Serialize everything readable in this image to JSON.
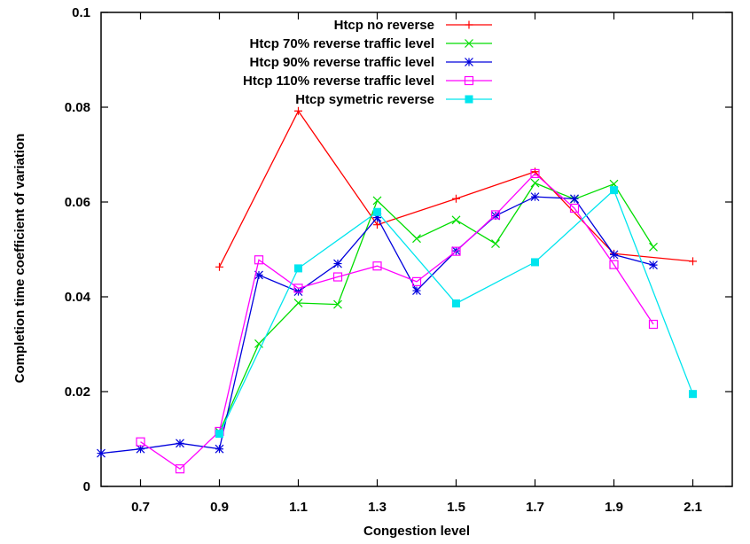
{
  "chart_data": {
    "type": "line",
    "title": "",
    "xlabel": "Congestion level",
    "ylabel": "Completion time coefficient of variation",
    "xlim": [
      0.6,
      2.2
    ],
    "ylim": [
      0,
      0.1
    ],
    "x_ticks": [
      0.7,
      0.9,
      1.1,
      1.3,
      1.5,
      1.7,
      1.9,
      2.1
    ],
    "x_tick_labels": [
      "0.7",
      "0.9",
      "1.1",
      "1.3",
      "1.5",
      "1.7",
      "1.9",
      "2.1"
    ],
    "y_ticks": [
      0,
      0.02,
      0.04,
      0.06,
      0.08,
      0.1
    ],
    "y_tick_labels": [
      "0",
      "0.02",
      "0.04",
      "0.06",
      "0.08",
      "0.1"
    ],
    "grid": false,
    "legend_position": "top-right",
    "series": [
      {
        "name": "Htcp no reverse",
        "color": "#ff0000",
        "marker": "plus",
        "x": [
          0.9,
          1.1,
          1.3,
          1.5,
          1.7,
          1.9,
          2.1
        ],
        "y": [
          0.0463,
          0.0792,
          0.0552,
          0.0607,
          0.0664,
          0.0491,
          0.0475
        ]
      },
      {
        "name": "Htcp 70% reverse traffic level",
        "color": "#00dd00",
        "marker": "cross",
        "x": [
          0.9,
          1.0,
          1.1,
          1.2,
          1.3,
          1.4,
          1.5,
          1.6,
          1.7,
          1.8,
          1.9,
          2.0
        ],
        "y": [
          0.0115,
          0.0301,
          0.0387,
          0.0384,
          0.0603,
          0.0523,
          0.0562,
          0.0512,
          0.064,
          0.0606,
          0.0638,
          0.0505
        ]
      },
      {
        "name": "Htcp 90% reverse traffic level",
        "color": "#0000dd",
        "marker": "star",
        "x": [
          0.6,
          0.7,
          0.8,
          0.9,
          1.0,
          1.1,
          1.2,
          1.3,
          1.4,
          1.5,
          1.6,
          1.7,
          1.8,
          1.9,
          2.0
        ],
        "y": [
          0.007,
          0.0079,
          0.0091,
          0.0079,
          0.0446,
          0.0411,
          0.047,
          0.0567,
          0.0413,
          0.0497,
          0.0571,
          0.0611,
          0.0607,
          0.0489,
          0.0467
        ]
      },
      {
        "name": "Htcp 110% reverse traffic level",
        "color": "#ff00ff",
        "marker": "open-square",
        "x": [
          0.7,
          0.8,
          0.9,
          1.0,
          1.1,
          1.2,
          1.3,
          1.4,
          1.5,
          1.6,
          1.7,
          1.8,
          1.9,
          2.0
        ],
        "y": [
          0.0094,
          0.0037,
          0.0116,
          0.0478,
          0.0418,
          0.0442,
          0.0465,
          0.0432,
          0.0496,
          0.0573,
          0.066,
          0.0587,
          0.0468,
          0.0342
        ]
      },
      {
        "name": "Htcp symetric reverse",
        "color": "#00e5ee",
        "marker": "filled-square",
        "x": [
          0.9,
          1.1,
          1.3,
          1.5,
          1.7,
          1.9,
          2.1
        ],
        "y": [
          0.0111,
          0.046,
          0.0579,
          0.0386,
          0.0473,
          0.0625,
          0.0195
        ]
      }
    ]
  }
}
